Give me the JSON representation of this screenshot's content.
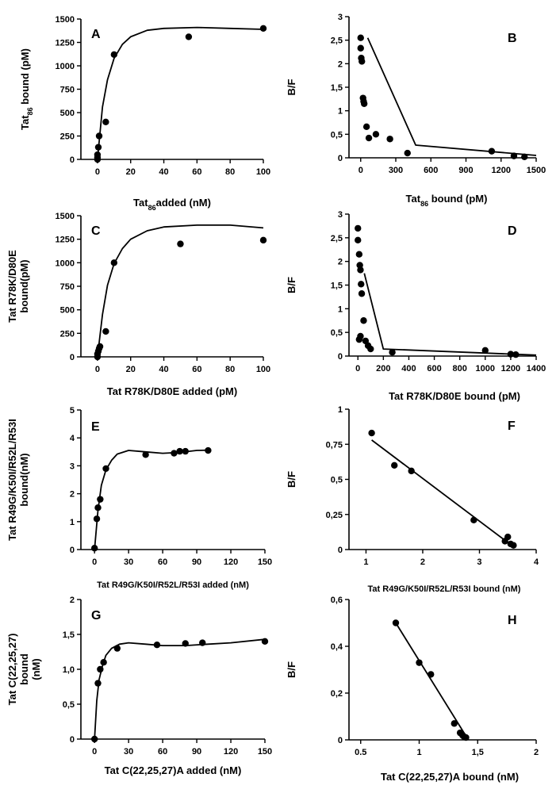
{
  "figure": {
    "background": "#ffffff",
    "ink": "#000000"
  },
  "chart_data": [
    {
      "id": "A",
      "type": "scatter",
      "panel_label": "A",
      "xlabel": "Tat",
      "xlabel_sub": "86",
      "xlabel_tail": "added (nM)",
      "ylabel": "Tat",
      "ylabel_sub": "86",
      "ylabel_tail": " bound (pM)",
      "xlim": [
        -10,
        100
      ],
      "ylim": [
        0,
        1500
      ],
      "xticks": [
        0,
        20,
        40,
        60,
        80,
        100
      ],
      "xtick_labels": [
        "0",
        "20",
        "40",
        "60",
        "80",
        "100"
      ],
      "yticks": [
        0,
        250,
        500,
        750,
        1000,
        1250,
        1500
      ],
      "ytick_labels": [
        "0",
        "250",
        "500",
        "750",
        "1000",
        "1250",
        "1500"
      ],
      "points": [
        [
          0,
          0
        ],
        [
          0,
          20
        ],
        [
          0,
          50
        ],
        [
          0.5,
          130
        ],
        [
          1,
          250
        ],
        [
          5,
          400
        ],
        [
          10,
          1120
        ],
        [
          55,
          1310
        ],
        [
          100,
          1400
        ]
      ],
      "fit_line": [
        [
          0,
          0
        ],
        [
          3,
          560
        ],
        [
          6,
          850
        ],
        [
          10,
          1080
        ],
        [
          15,
          1230
        ],
        [
          20,
          1310
        ],
        [
          30,
          1380
        ],
        [
          40,
          1400
        ],
        [
          60,
          1410
        ],
        [
          80,
          1400
        ],
        [
          100,
          1390
        ]
      ]
    },
    {
      "id": "B",
      "type": "scatter",
      "panel_label": "B",
      "xlabel": "Tat",
      "xlabel_sub": "86",
      "xlabel_tail": " bound (pM)",
      "ylabel": "B/F",
      "xlim": [
        -100,
        1500
      ],
      "ylim": [
        0,
        3
      ],
      "xticks": [
        0,
        300,
        600,
        900,
        1200,
        1500
      ],
      "xtick_labels": [
        "0",
        "300",
        "600",
        "900",
        "1200",
        "1500"
      ],
      "yticks": [
        0,
        0.5,
        1,
        1.5,
        2,
        2.5,
        3
      ],
      "ytick_labels": [
        "0",
        "0,5",
        "1",
        "1,5",
        "2",
        "2,5",
        "3"
      ],
      "points": [
        [
          0,
          2.55
        ],
        [
          0,
          2.33
        ],
        [
          5,
          2.12
        ],
        [
          10,
          2.05
        ],
        [
          20,
          1.27
        ],
        [
          25,
          1.2
        ],
        [
          30,
          1.15
        ],
        [
          50,
          0.66
        ],
        [
          70,
          0.42
        ],
        [
          130,
          0.5
        ],
        [
          250,
          0.4
        ],
        [
          400,
          0.1
        ],
        [
          1120,
          0.14
        ],
        [
          1310,
          0.04
        ],
        [
          1400,
          0.02
        ]
      ],
      "fit_line": [
        [
          60,
          2.55
        ],
        [
          470,
          0.27
        ],
        [
          1500,
          0.05
        ]
      ]
    },
    {
      "id": "C",
      "type": "scatter",
      "panel_label": "C",
      "xlabel": "Tat R78K/D80E added (pM)",
      "ylabel_lines": [
        "Tat R78K/D80E",
        "bound(pM)"
      ],
      "xlim": [
        -10,
        100
      ],
      "ylim": [
        0,
        1500
      ],
      "xticks": [
        0,
        20,
        40,
        60,
        80,
        100
      ],
      "xtick_labels": [
        "0",
        "20",
        "40",
        "60",
        "80",
        "100"
      ],
      "yticks": [
        0,
        250,
        500,
        750,
        1000,
        1250,
        1500
      ],
      "ytick_labels": [
        "0",
        "250",
        "500",
        "750",
        "1000",
        "1250",
        "1500"
      ],
      "points": [
        [
          0,
          0
        ],
        [
          0,
          30
        ],
        [
          0.5,
          60
        ],
        [
          1,
          90
        ],
        [
          1.5,
          110
        ],
        [
          5,
          270
        ],
        [
          10,
          1000
        ],
        [
          50,
          1200
        ],
        [
          100,
          1240
        ]
      ],
      "fit_line": [
        [
          0,
          0
        ],
        [
          3,
          450
        ],
        [
          6,
          760
        ],
        [
          10,
          990
        ],
        [
          15,
          1150
        ],
        [
          20,
          1250
        ],
        [
          30,
          1340
        ],
        [
          40,
          1380
        ],
        [
          60,
          1400
        ],
        [
          80,
          1400
        ],
        [
          100,
          1370
        ]
      ]
    },
    {
      "id": "D",
      "type": "scatter",
      "panel_label": "D",
      "xlabel": "Tat R78K/D80E bound (pM)",
      "ylabel": "B/F",
      "xlim": [
        -70,
        1400
      ],
      "ylim": [
        0,
        3
      ],
      "xticks": [
        0,
        200,
        400,
        600,
        800,
        1000,
        1200,
        1400
      ],
      "xtick_labels": [
        "0",
        "200",
        "400",
        "600",
        "800",
        "1000",
        "1200",
        "1400"
      ],
      "yticks": [
        0,
        0.5,
        1,
        1.5,
        2,
        2.5,
        3
      ],
      "ytick_labels": [
        "0",
        "0,5",
        "1",
        "1,5",
        "2",
        "2,5",
        "3"
      ],
      "points": [
        [
          0,
          2.7
        ],
        [
          0,
          2.45
        ],
        [
          10,
          2.15
        ],
        [
          15,
          1.92
        ],
        [
          20,
          1.82
        ],
        [
          25,
          1.52
        ],
        [
          30,
          1.32
        ],
        [
          45,
          0.75
        ],
        [
          20,
          0.42
        ],
        [
          10,
          0.35
        ],
        [
          60,
          0.32
        ],
        [
          80,
          0.22
        ],
        [
          100,
          0.15
        ],
        [
          270,
          0.08
        ],
        [
          1000,
          0.12
        ],
        [
          1200,
          0.04
        ],
        [
          1240,
          0.03
        ]
      ],
      "fit_line": [
        [
          50,
          1.75
        ],
        [
          200,
          0.15
        ],
        [
          1400,
          0.02
        ]
      ]
    },
    {
      "id": "E",
      "type": "scatter",
      "panel_label": "E",
      "xlabel": "Tat R49G/K50I/R52L/R53I added (nM)",
      "ylabel_lines": [
        "Tat R49G/K50I/R52L/R53I",
        "bound(nM)"
      ],
      "xlim": [
        -12,
        150
      ],
      "ylim": [
        0,
        5
      ],
      "xticks": [
        0,
        30,
        60,
        90,
        120,
        150
      ],
      "xtick_labels": [
        "0",
        "30",
        "60",
        "90",
        "120",
        "150"
      ],
      "yticks": [
        0,
        1,
        2,
        3,
        4,
        5
      ],
      "ytick_labels": [
        "0",
        "1",
        "2",
        "3",
        "4",
        "5"
      ],
      "points": [
        [
          0,
          0.05
        ],
        [
          2,
          1.1
        ],
        [
          3,
          1.5
        ],
        [
          5,
          1.8
        ],
        [
          10,
          2.9
        ],
        [
          45,
          3.4
        ],
        [
          70,
          3.45
        ],
        [
          75,
          3.52
        ],
        [
          80,
          3.52
        ],
        [
          100,
          3.55
        ]
      ],
      "fit_line": [
        [
          0,
          0
        ],
        [
          3,
          1.4
        ],
        [
          6,
          2.3
        ],
        [
          10,
          2.85
        ],
        [
          15,
          3.2
        ],
        [
          20,
          3.42
        ],
        [
          30,
          3.55
        ],
        [
          45,
          3.5
        ],
        [
          60,
          3.45
        ],
        [
          75,
          3.48
        ],
        [
          90,
          3.55
        ],
        [
          100,
          3.56
        ]
      ]
    },
    {
      "id": "F",
      "type": "scatter",
      "panel_label": "F",
      "xlabel": "Tat R49G/K50I/R52L/R53I bound (nM)",
      "ylabel": "B/F",
      "xlim": [
        0.7,
        4
      ],
      "ylim": [
        0,
        1
      ],
      "xticks": [
        1,
        2,
        3,
        4
      ],
      "xtick_labels": [
        "1",
        "2",
        "3",
        "4"
      ],
      "yticks": [
        0,
        0.25,
        0.5,
        0.75,
        1
      ],
      "ytick_labels": [
        "0",
        "0,25",
        "0,5",
        "0,75",
        "1"
      ],
      "points": [
        [
          1.1,
          0.83
        ],
        [
          1.5,
          0.6
        ],
        [
          1.8,
          0.56
        ],
        [
          2.9,
          0.21
        ],
        [
          3.45,
          0.06
        ],
        [
          3.5,
          0.09
        ],
        [
          3.55,
          0.04
        ],
        [
          3.6,
          0.03
        ]
      ],
      "fit_line": [
        [
          1.1,
          0.78
        ],
        [
          3.6,
          0.02
        ]
      ]
    },
    {
      "id": "G",
      "type": "scatter",
      "panel_label": "G",
      "xlabel": "Tat C(22,25,27)A added (nM)",
      "ylabel_lines": [
        "Tat C(22,25,27)",
        "bound",
        "(nM)"
      ],
      "xlim": [
        -12,
        150
      ],
      "ylim": [
        0,
        2
      ],
      "xticks": [
        0,
        30,
        60,
        90,
        120,
        150
      ],
      "xtick_labels": [
        "0",
        "30",
        "60",
        "90",
        "120",
        "150"
      ],
      "yticks": [
        0,
        0.5,
        1,
        1.5,
        2
      ],
      "ytick_labels": [
        "0",
        "0,5",
        "1,0",
        "1,5",
        "2"
      ],
      "points": [
        [
          0,
          0
        ],
        [
          3,
          0.8
        ],
        [
          5,
          1.0
        ],
        [
          8,
          1.1
        ],
        [
          20,
          1.3
        ],
        [
          55,
          1.35
        ],
        [
          80,
          1.37
        ],
        [
          95,
          1.38
        ],
        [
          150,
          1.4
        ]
      ],
      "fit_line": [
        [
          0,
          0
        ],
        [
          2,
          0.55
        ],
        [
          4,
          0.85
        ],
        [
          7,
          1.05
        ],
        [
          10,
          1.2
        ],
        [
          15,
          1.3
        ],
        [
          22,
          1.36
        ],
        [
          30,
          1.38
        ],
        [
          45,
          1.36
        ],
        [
          60,
          1.34
        ],
        [
          80,
          1.34
        ],
        [
          100,
          1.36
        ],
        [
          120,
          1.38
        ],
        [
          150,
          1.43
        ]
      ]
    },
    {
      "id": "H",
      "type": "scatter",
      "panel_label": "H",
      "xlabel": "Tat C(22,25,27)A bound (nM)",
      "ylabel": "B/F",
      "xlim": [
        0.4,
        2
      ],
      "ylim": [
        0,
        0.6
      ],
      "xticks": [
        0.5,
        1,
        1.5,
        2
      ],
      "xtick_labels": [
        "0.5",
        "1",
        "1,5",
        "2"
      ],
      "yticks": [
        0,
        0.2,
        0.4,
        0.6
      ],
      "ytick_labels": [
        "0",
        "0,2",
        "0,4",
        "0,6"
      ],
      "points": [
        [
          0.8,
          0.5
        ],
        [
          1.0,
          0.33
        ],
        [
          1.1,
          0.28
        ],
        [
          1.3,
          0.07
        ],
        [
          1.35,
          0.03
        ],
        [
          1.37,
          0.02
        ],
        [
          1.38,
          0.015
        ],
        [
          1.4,
          0.01
        ]
      ],
      "fit_line": [
        [
          0.8,
          0.5
        ],
        [
          1.42,
          0.0
        ]
      ]
    }
  ]
}
